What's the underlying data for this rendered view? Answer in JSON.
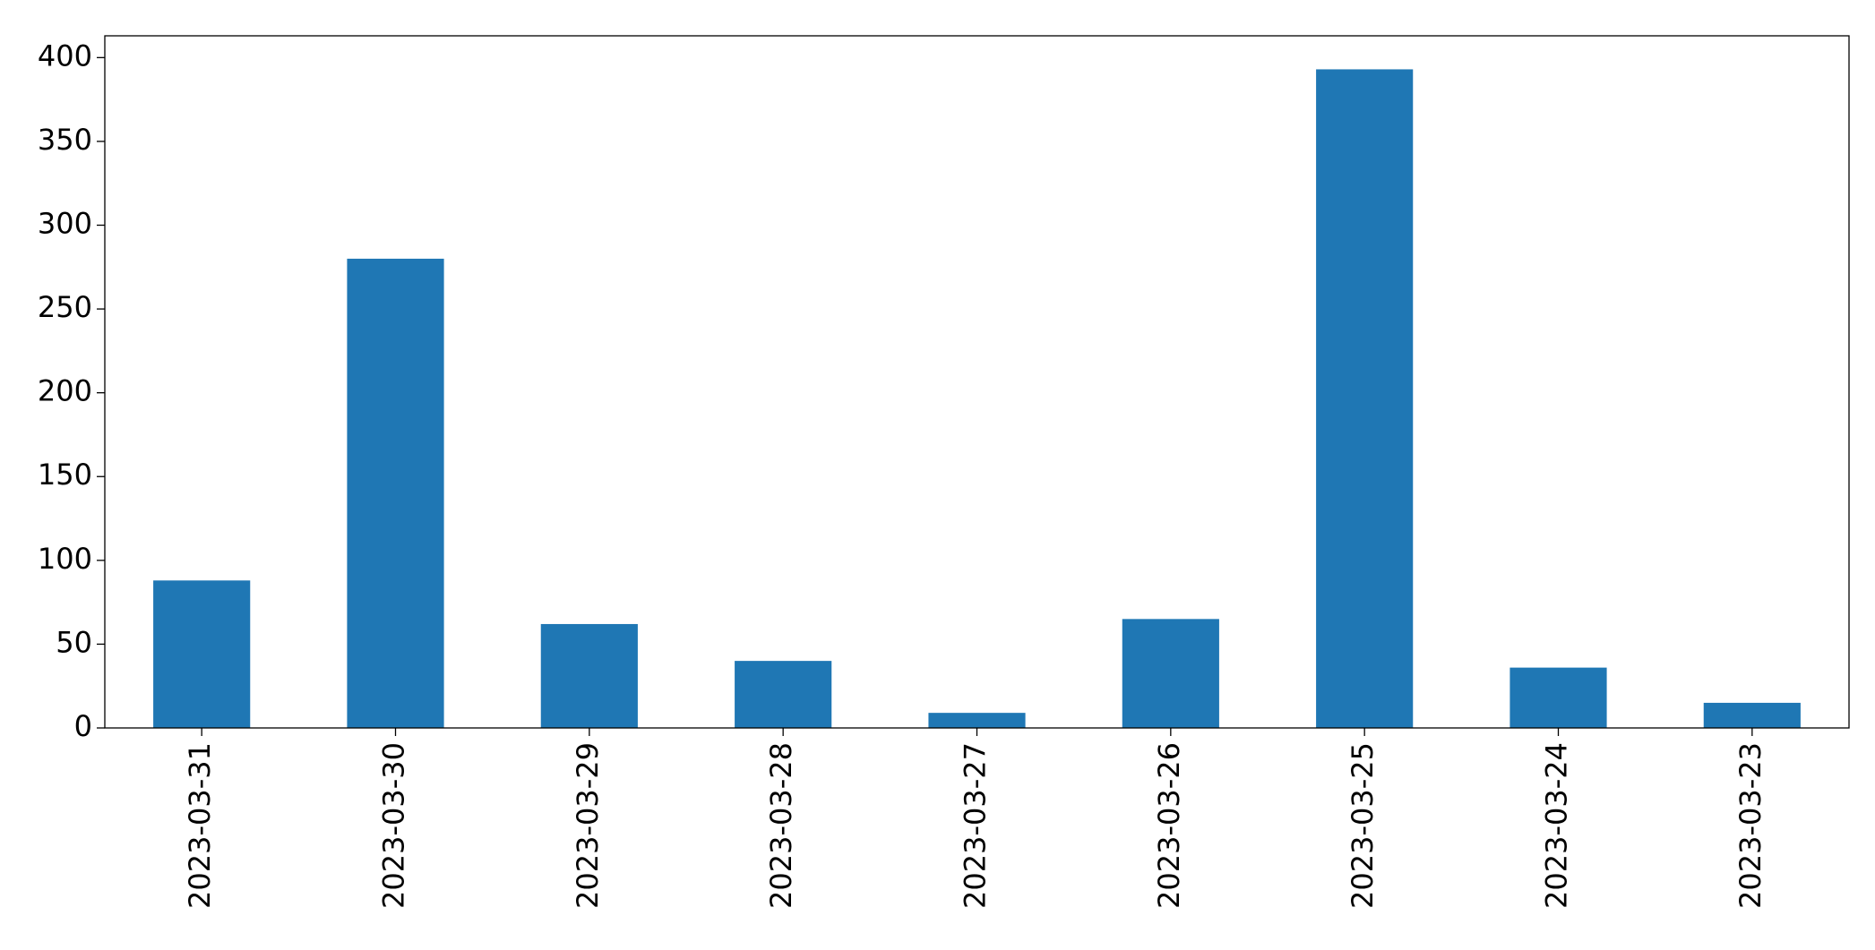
{
  "chart_data": {
    "type": "bar",
    "categories": [
      "2023-03-31",
      "2023-03-30",
      "2023-03-29",
      "2023-03-28",
      "2023-03-27",
      "2023-03-26",
      "2023-03-25",
      "2023-03-24",
      "2023-03-23"
    ],
    "values": [
      88,
      280,
      62,
      40,
      9,
      65,
      393,
      36,
      15
    ],
    "color": "#1f77b4",
    "ylim": [
      0,
      413
    ],
    "yticks": [
      0,
      50,
      100,
      150,
      200,
      250,
      300,
      350,
      400
    ],
    "grid": false
  }
}
